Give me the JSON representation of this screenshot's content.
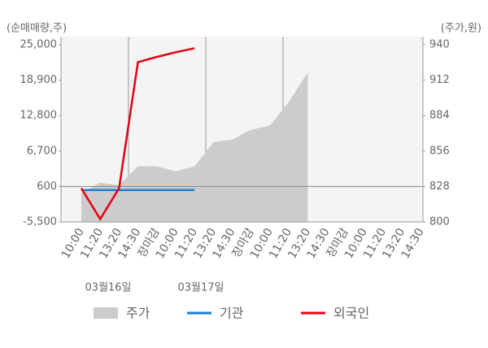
{
  "chart_data": {
    "type": "combo",
    "y_label": "(순매매량,주)",
    "y2_label": "(주가,원)",
    "categories": [
      "10:00",
      "11:20",
      "13:20",
      "14:30",
      "장마감",
      "10:00",
      "11:20",
      "13:20",
      "14:30",
      "장마감",
      "10:00",
      "11:20",
      "13:20",
      "14:30",
      "장마감",
      "10:00",
      "11:20",
      "13:20",
      "14:30"
    ],
    "xtick_colors": [
      "#666666",
      "#666666",
      "#666666",
      "#666666",
      "#e60012",
      "#666666",
      "#666666",
      "#666666",
      "#666666",
      "#e60012",
      "#666666",
      "#666666",
      "#666666",
      "#666666",
      "#e60012",
      "#111111",
      "#666666",
      "#666666",
      "#666666"
    ],
    "date_labels": [
      "03월16일",
      "03월17일"
    ],
    "ylim": [
      -5500,
      25000
    ],
    "yticks": [
      {
        "value": -5500,
        "label": "-5,500"
      },
      600,
      {
        "value": 6700,
        "label": "6,700"
      },
      {
        "value": 12800,
        "label": "12,800"
      },
      {
        "value": 18900,
        "label": "18,900"
      },
      {
        "value": 25000,
        "label": "25,000"
      }
    ],
    "y2lim": [
      800,
      940
    ],
    "y2ticks": [
      800,
      828,
      856,
      884,
      912,
      940
    ],
    "series": [
      {
        "name": "주가",
        "type": "area",
        "axis": "y2",
        "color": "#cccccc",
        "values": [
          823,
          831,
          829,
          844,
          844,
          840,
          844,
          863,
          865,
          873,
          876,
          895,
          918,
          null,
          null,
          null,
          null,
          null,
          null
        ]
      },
      {
        "name": "기관",
        "type": "line",
        "color": "#1a7fd0",
        "values": [
          0,
          0,
          0,
          0,
          0,
          0,
          0,
          null,
          null,
          null,
          null,
          null,
          null,
          null,
          null,
          null,
          null,
          null,
          null
        ]
      },
      {
        "name": "외국인",
        "type": "line",
        "color": "#e60012",
        "values": [
          300,
          -5000,
          300,
          22000,
          22900,
          23700,
          24400,
          null,
          null,
          null,
          null,
          null,
          null,
          null,
          null,
          null,
          null,
          null,
          null
        ]
      }
    ]
  }
}
